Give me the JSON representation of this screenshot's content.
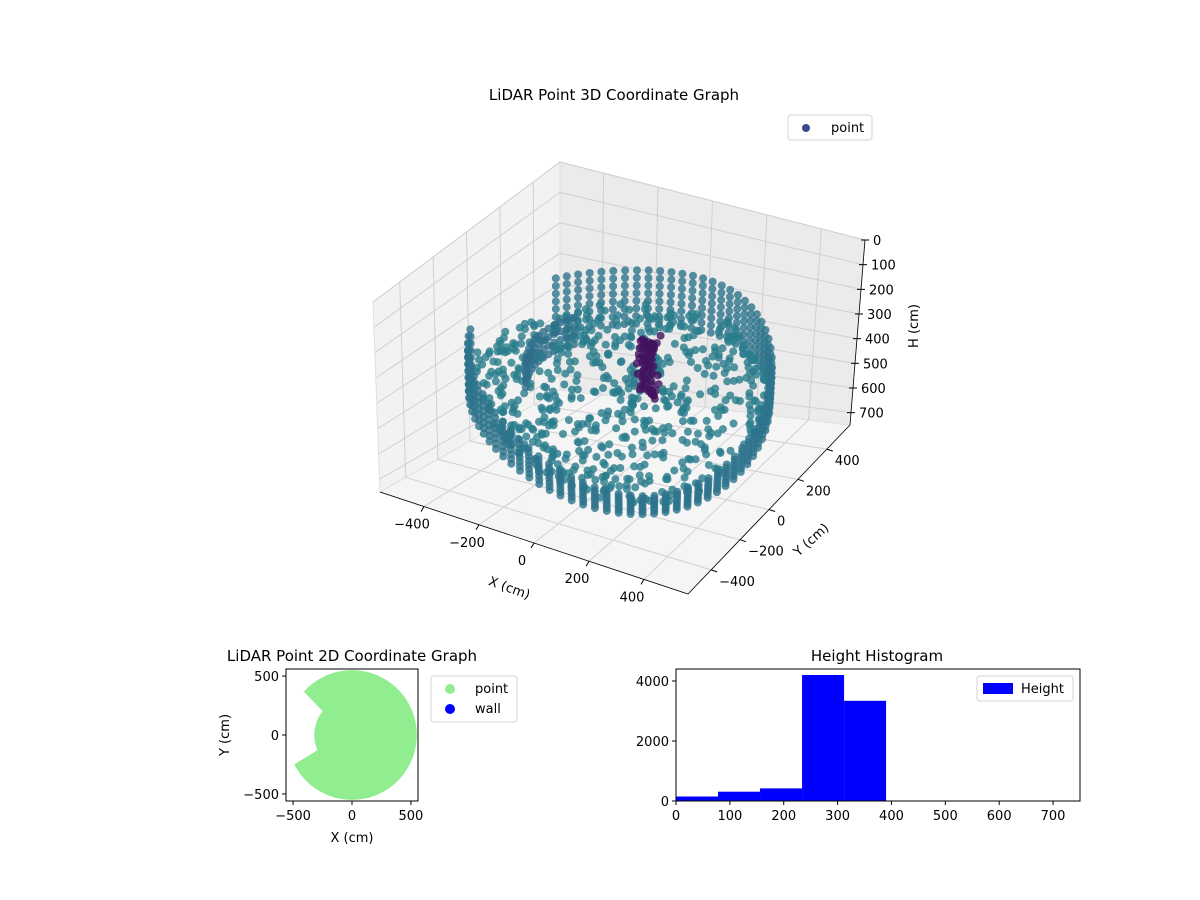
{
  "chart_data": [
    {
      "id": "lidar-3d",
      "type": "scatter",
      "title": "LiDAR Point 3D Coordinate Graph",
      "xlabel": "X (cm)",
      "ylabel": "Y (cm)",
      "zlabel": "H (cm)",
      "x_ticks": [
        -400,
        -200,
        0,
        200,
        400
      ],
      "y_ticks": [
        -400,
        -200,
        0,
        200,
        400
      ],
      "z_ticks": [
        0,
        100,
        200,
        300,
        400,
        500,
        600,
        700
      ],
      "z_inverted": true,
      "xlim": [
        -560,
        560
      ],
      "ylim": [
        -560,
        560
      ],
      "zlim": [
        0,
        750
      ],
      "legend": {
        "position": "top-right",
        "entries": [
          {
            "label": "point",
            "color": "#3b4a8c"
          }
        ]
      },
      "grid": true,
      "series": [
        {
          "name": "point",
          "colormap": "viridis"
        }
      ]
    },
    {
      "id": "lidar-2d",
      "type": "scatter",
      "title": "LiDAR Point 2D Coordinate Graph",
      "xlabel": "X (cm)",
      "ylabel": "Y (cm)",
      "xlim": [
        -560,
        560
      ],
      "ylim": [
        -560,
        560
      ],
      "x_ticks": [
        -500,
        0,
        500
      ],
      "y_ticks": [
        -500,
        0,
        500
      ],
      "legend": {
        "position": "outside-right",
        "entries": [
          {
            "label": "point",
            "color": "#90ee90"
          },
          {
            "label": "wall",
            "color": "#0000ff"
          }
        ]
      },
      "grid": false,
      "series": [
        {
          "name": "point",
          "color": "#90ee90",
          "shape": "filled-disc",
          "radius": 550,
          "notch_angles_deg": [
            140,
            205
          ]
        },
        {
          "name": "wall",
          "color": "#0000ff",
          "values": []
        }
      ]
    },
    {
      "id": "height-hist",
      "type": "bar",
      "title": "Height Histogram",
      "xlabel": "",
      "ylabel": "",
      "xlim": [
        0,
        750
      ],
      "ylim": [
        0,
        4400
      ],
      "x_ticks": [
        0,
        100,
        200,
        300,
        400,
        500,
        600,
        700
      ],
      "y_ticks": [
        0,
        2000,
        4000
      ],
      "legend": {
        "position": "top-right",
        "entries": [
          {
            "label": "Height",
            "color": "#0000ff"
          }
        ]
      },
      "grid": false,
      "bin_width": 78,
      "bins": [
        {
          "start": 0,
          "end": 78,
          "count": 150
        },
        {
          "start": 78,
          "end": 156,
          "count": 310
        },
        {
          "start": 156,
          "end": 234,
          "count": 420
        },
        {
          "start": 234,
          "end": 312,
          "count": 4200
        },
        {
          "start": 312,
          "end": 390,
          "count": 3340
        },
        {
          "start": 390,
          "end": 468,
          "count": 0
        },
        {
          "start": 468,
          "end": 546,
          "count": 0
        },
        {
          "start": 546,
          "end": 624,
          "count": 0
        },
        {
          "start": 624,
          "end": 702,
          "count": 0
        },
        {
          "start": 702,
          "end": 780,
          "count": 0
        }
      ],
      "series": [
        {
          "name": "Height",
          "color": "#0000ff"
        }
      ]
    }
  ]
}
